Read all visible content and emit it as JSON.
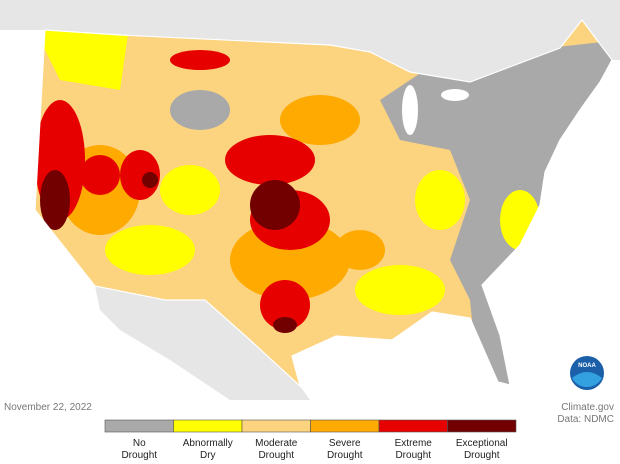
{
  "date": "November 22, 2022",
  "credit": [
    "Climate.gov",
    "Data: NDMC"
  ],
  "logo": "NOAA",
  "legend": [
    {
      "lines": [
        "No",
        "Drought"
      ],
      "color": "#a9a9a9"
    },
    {
      "lines": [
        "Abnormally",
        "Dry"
      ],
      "color": "#ffff00"
    },
    {
      "lines": [
        "Moderate",
        "Drought"
      ],
      "color": "#fcd37f"
    },
    {
      "lines": [
        "Severe",
        "Drought"
      ],
      "color": "#ffaa00"
    },
    {
      "lines": [
        "Extreme",
        "Drought"
      ],
      "color": "#e60000"
    },
    {
      "lines": [
        "Exceptional",
        "Drought"
      ],
      "color": "#730000"
    }
  ]
}
